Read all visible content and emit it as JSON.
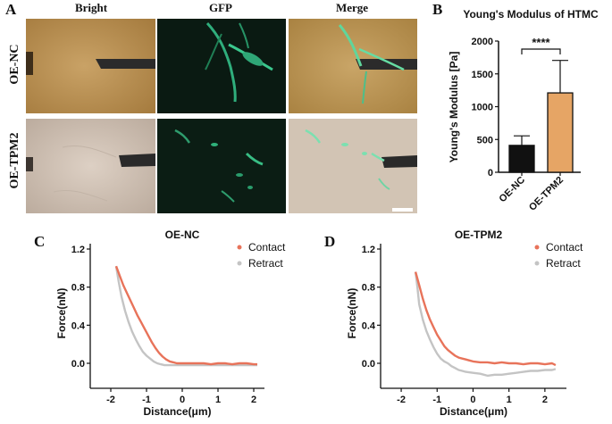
{
  "panel_labels": {
    "a": "A",
    "b": "B",
    "c": "C",
    "d": "D"
  },
  "micrographs": {
    "columns": [
      "Bright",
      "GFP",
      "Merge"
    ],
    "rows": [
      "OE-NC",
      "OE-TPM2"
    ]
  },
  "colors": {
    "contact": "#e8735a",
    "retract": "#c4c4c4",
    "bar_ncc": "#111111",
    "bar_tpm2": "#e6a565"
  },
  "chart_data": [
    {
      "id": "youngs",
      "type": "bar",
      "title": "Young's Modulus of HTMC",
      "categories": [
        "OE-NC",
        "OE-TPM2"
      ],
      "values": [
        410,
        1210
      ],
      "errors": [
        145,
        495
      ],
      "ylabel": "Young's Modulus [Pa]",
      "xlabel": "",
      "ylim": [
        0,
        2000
      ],
      "yticks": [
        "0",
        "500",
        "1000",
        "1500",
        "2000"
      ],
      "significance": "****"
    },
    {
      "id": "curve_nc",
      "type": "line",
      "title": "OE-NC",
      "xlabel": "Distance(μm)",
      "ylabel": "Force(nN)",
      "xlim": [
        -2.3,
        2.3
      ],
      "ylim": [
        -0.15,
        1.2
      ],
      "xticks": [
        "-2",
        "-1",
        "0",
        "1",
        "2"
      ],
      "yticks": [
        "1.2",
        "0.8",
        "0.4",
        "0.0"
      ],
      "series": [
        {
          "name": "Contact",
          "x": [
            -1.85,
            -1.75,
            -1.65,
            -1.55,
            -1.45,
            -1.35,
            -1.25,
            -1.15,
            -1.05,
            -0.95,
            -0.85,
            -0.75,
            -0.65,
            -0.55,
            -0.45,
            -0.35,
            -0.25,
            -0.15,
            0,
            0.2,
            0.4,
            0.6,
            0.8,
            1.0,
            1.2,
            1.4,
            1.6,
            1.8,
            2.0,
            2.1
          ],
          "y": [
            1.02,
            0.92,
            0.82,
            0.74,
            0.66,
            0.58,
            0.5,
            0.43,
            0.36,
            0.29,
            0.22,
            0.16,
            0.11,
            0.07,
            0.04,
            0.02,
            0.01,
            0.0,
            0.0,
            0.0,
            0.0,
            0.0,
            -0.01,
            0.0,
            0.0,
            -0.01,
            0.0,
            0.0,
            -0.01,
            -0.01
          ]
        },
        {
          "name": "Retract",
          "x": [
            -1.85,
            -1.78,
            -1.7,
            -1.6,
            -1.5,
            -1.4,
            -1.3,
            -1.2,
            -1.1,
            -1.0,
            -0.9,
            -0.8,
            -0.7,
            -0.6,
            -0.5,
            -0.4,
            -0.3,
            -0.2,
            0,
            0.2,
            0.4,
            0.6,
            0.8,
            1.0,
            1.2,
            1.4,
            1.6,
            1.8,
            2.0,
            2.1
          ],
          "y": [
            1.02,
            0.86,
            0.7,
            0.55,
            0.43,
            0.33,
            0.25,
            0.18,
            0.12,
            0.08,
            0.05,
            0.02,
            0.0,
            -0.01,
            -0.02,
            -0.02,
            -0.02,
            -0.02,
            -0.02,
            -0.02,
            -0.02,
            -0.02,
            -0.02,
            -0.02,
            -0.02,
            -0.02,
            -0.02,
            -0.02,
            -0.02,
            -0.02
          ]
        }
      ]
    },
    {
      "id": "curve_tpm2",
      "type": "line",
      "title": "OE-TPM2",
      "xlabel": "Distance(μm)",
      "ylabel": "Force(nN)",
      "xlim": [
        -2.3,
        2.6
      ],
      "ylim": [
        -0.15,
        1.2
      ],
      "xticks": [
        "-2",
        "-1",
        "0",
        "1",
        "2"
      ],
      "yticks": [
        "1.2",
        "0.8",
        "0.4",
        "0.0"
      ],
      "series": [
        {
          "name": "Contact",
          "x": [
            -1.6,
            -1.5,
            -1.4,
            -1.3,
            -1.2,
            -1.1,
            -1.0,
            -0.9,
            -0.8,
            -0.7,
            -0.6,
            -0.5,
            -0.4,
            -0.3,
            -0.2,
            -0.1,
            0,
            0.2,
            0.4,
            0.6,
            0.8,
            1.0,
            1.2,
            1.4,
            1.6,
            1.8,
            2.0,
            2.2,
            2.3
          ],
          "y": [
            0.96,
            0.82,
            0.68,
            0.56,
            0.46,
            0.38,
            0.3,
            0.24,
            0.18,
            0.14,
            0.11,
            0.08,
            0.06,
            0.05,
            0.04,
            0.03,
            0.02,
            0.01,
            0.01,
            0.0,
            0.01,
            0.0,
            0.0,
            -0.01,
            0.0,
            0.0,
            -0.01,
            0.0,
            -0.02
          ]
        },
        {
          "name": "Retract",
          "x": [
            -1.6,
            -1.55,
            -1.5,
            -1.4,
            -1.3,
            -1.2,
            -1.1,
            -1.0,
            -0.9,
            -0.8,
            -0.7,
            -0.6,
            -0.5,
            -0.4,
            -0.3,
            -0.2,
            0,
            0.2,
            0.4,
            0.6,
            0.8,
            1.0,
            1.2,
            1.4,
            1.6,
            1.8,
            2.0,
            2.2,
            2.3
          ],
          "y": [
            0.96,
            0.8,
            0.62,
            0.46,
            0.34,
            0.25,
            0.17,
            0.1,
            0.05,
            0.02,
            0.0,
            -0.03,
            -0.05,
            -0.07,
            -0.08,
            -0.09,
            -0.1,
            -0.11,
            -0.13,
            -0.12,
            -0.12,
            -0.11,
            -0.1,
            -0.09,
            -0.08,
            -0.08,
            -0.07,
            -0.07,
            -0.06
          ]
        }
      ]
    }
  ]
}
